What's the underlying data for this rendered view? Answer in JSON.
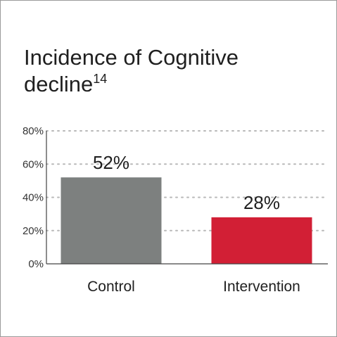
{
  "chart_data": {
    "type": "bar",
    "title": "Incidence of Cognitive decline",
    "title_superscript": "14",
    "categories": [
      "Control",
      "Intervention"
    ],
    "values": [
      52,
      28
    ],
    "data_labels": [
      "52%",
      "28%"
    ],
    "y_tick_labels": [
      "0%",
      "20%",
      "40%",
      "60%",
      "80%"
    ],
    "y_ticks": [
      0,
      20,
      40,
      60,
      80
    ],
    "ylim": [
      0,
      80
    ],
    "bar_colors": [
      "#7d807f",
      "#d21f35"
    ],
    "grid": "dotted horizontal",
    "legend": "none"
  }
}
